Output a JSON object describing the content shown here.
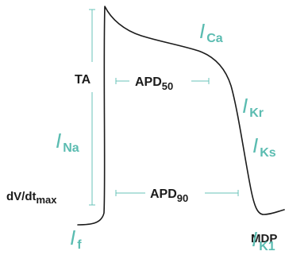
{
  "colors": {
    "curve": "#1b1b1b",
    "bracket": "#69c3b8",
    "current_label": "#5bbcb1",
    "text": "#1b1b1b"
  },
  "labels": {
    "ta": "TA",
    "dvdt": {
      "main": "dV/dt",
      "sub": "max"
    },
    "mdp": "MDP",
    "apd50": {
      "main": "APD",
      "sub": "50"
    },
    "apd90": {
      "main": "APD",
      "sub": "90"
    }
  },
  "currents": {
    "i_ca": {
      "main": "I",
      "sub": "Ca"
    },
    "i_na": {
      "main": "I",
      "sub": "Na"
    },
    "i_kr": {
      "main": "I",
      "sub": "Kr"
    },
    "i_ks": {
      "main": "I",
      "sub": "Ks"
    },
    "i_f": {
      "main": "I",
      "sub": "f"
    },
    "i_k1": {
      "main": "I",
      "sub": "K1"
    }
  }
}
